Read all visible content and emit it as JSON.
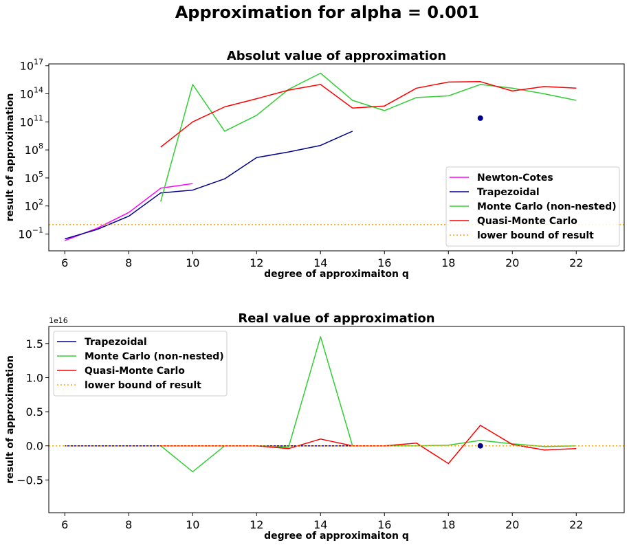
{
  "suptitle": "Approximation for alpha = 0.001",
  "chart_data": [
    {
      "type": "line",
      "yscale": "log",
      "title": "Absolut value of approximation",
      "xlabel": "degree of approximaiton q",
      "ylabel": "result of approximation",
      "xlim": [
        5.5,
        23.5
      ],
      "ylim_log10": [
        -2.8,
        17.2
      ],
      "xticks": [
        6,
        8,
        10,
        12,
        14,
        16,
        18,
        20,
        22
      ],
      "yticks": [
        {
          "exp": -1,
          "label_base": "10",
          "label_exp": "−1"
        },
        {
          "exp": 2,
          "label_base": "10",
          "label_exp": "2"
        },
        {
          "exp": 5,
          "label_base": "10",
          "label_exp": "5"
        },
        {
          "exp": 8,
          "label_base": "10",
          "label_exp": "8"
        },
        {
          "exp": 11,
          "label_base": "10",
          "label_exp": "11"
        },
        {
          "exp": 14,
          "label_base": "10",
          "label_exp": "14"
        },
        {
          "exp": 17,
          "label_base": "10",
          "label_exp": "17"
        }
      ],
      "legend_position": "lower right",
      "series": [
        {
          "name": "Newton-Cotes",
          "color": "#ff00ff",
          "style": "solid",
          "x": [
            6,
            7,
            8,
            9,
            10
          ],
          "y": [
            0.02,
            0.4,
            20,
            8000,
            25000
          ]
        },
        {
          "name": "Trapezoidal",
          "color": "#00008b",
          "style": "solid",
          "x": [
            6,
            7,
            8,
            9,
            10,
            11,
            12,
            13,
            14,
            15
          ],
          "y": [
            0.03,
            0.3,
            8,
            2500,
            5000,
            80000,
            15000000,
            60000000,
            300000000,
            10000000000
          ]
        },
        {
          "name": "Monte Carlo (non-nested)",
          "color": "#32cd32",
          "style": "solid",
          "x": [
            9,
            10,
            11,
            12,
            13,
            14,
            15,
            16,
            17,
            18,
            19,
            20,
            21,
            22
          ],
          "y": [
            300,
            1000000000000000.0,
            10000000000.0,
            500000000000.0,
            300000000000000.0,
            1.6e+16,
            20000000000000.0,
            1600000000000.0,
            40000000000000.0,
            60000000000000.0,
            1000000000000000.0,
            400000000000000.0,
            100000000000000.0,
            20000000000000.0
          ]
        },
        {
          "name": "Quasi-Monte Carlo",
          "color": "#ff0000",
          "style": "solid",
          "x": [
            9,
            10,
            11,
            12,
            13,
            14,
            15,
            16,
            17,
            18,
            19,
            20,
            21,
            22
          ],
          "y": [
            200000000.0,
            100000000000.0,
            4000000000000.0,
            30000000000000.0,
            250000000000000.0,
            1000000000000000.0,
            3000000000000.0,
            5000000000000.0,
            400000000000000.0,
            1800000000000000.0,
            2000000000000000.0,
            200000000000000.0,
            600000000000000.0,
            400000000000000.0
          ]
        },
        {
          "name": "lower bound of result",
          "color": "#ffa500",
          "style": "dotted",
          "x": [
            5.5,
            23.5
          ],
          "y": [
            1,
            1
          ]
        }
      ],
      "points": [
        {
          "x": 19,
          "y": 250000000000.0,
          "color": "#00008b"
        }
      ]
    },
    {
      "type": "line",
      "title": "Real value of approximation",
      "xlabel": "degree of approximaiton q",
      "ylabel": "result of approximation",
      "offset_text": "1e16",
      "xlim": [
        5.5,
        23.5
      ],
      "ylim": [
        -0.98,
        1.75
      ],
      "xticks": [
        6,
        8,
        10,
        12,
        14,
        16,
        18,
        20,
        22
      ],
      "yticks": [
        -0.5,
        0.0,
        0.5,
        1.0,
        1.5
      ],
      "ytick_labels": [
        "−0.5",
        "0.0",
        "0.5",
        "1.0",
        "1.5"
      ],
      "legend_position": "upper left",
      "series": [
        {
          "name": "Trapezoidal",
          "color": "#00008b",
          "style": "solid",
          "x": [
            6,
            7,
            8,
            9,
            10,
            11,
            12,
            13,
            14,
            15
          ],
          "y": [
            0,
            0,
            0,
            0,
            0,
            0,
            0,
            0,
            0,
            0
          ]
        },
        {
          "name": "Monte Carlo (non-nested)",
          "color": "#32cd32",
          "style": "solid",
          "x": [
            9,
            10,
            11,
            12,
            13,
            14,
            15,
            16,
            17,
            18,
            19,
            20,
            21,
            22
          ],
          "y": [
            0,
            -0.38,
            0,
            0,
            -0.02,
            1.6,
            0,
            0,
            0,
            0.01,
            0.08,
            0.03,
            -0.01,
            0
          ]
        },
        {
          "name": "Quasi-Monte Carlo",
          "color": "#ff0000",
          "style": "solid",
          "x": [
            9,
            10,
            11,
            12,
            13,
            14,
            15,
            16,
            17,
            18,
            19,
            20,
            21,
            22
          ],
          "y": [
            0,
            0,
            0,
            0,
            -0.04,
            0.1,
            0,
            0,
            0.04,
            -0.26,
            0.3,
            0.02,
            -0.06,
            -0.04
          ]
        },
        {
          "name": "lower bound of result",
          "color": "#ffa500",
          "style": "dotted",
          "x": [
            5.5,
            23.5
          ],
          "y": [
            0,
            0
          ]
        }
      ],
      "points": [
        {
          "x": 19,
          "y": 0,
          "color": "#00008b"
        }
      ]
    }
  ]
}
